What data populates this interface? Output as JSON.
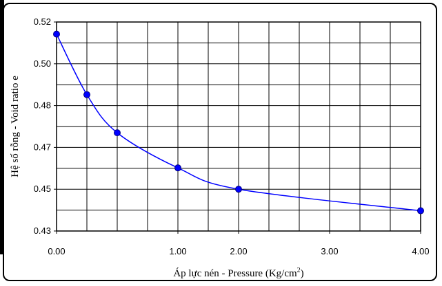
{
  "chart_data": {
    "type": "line",
    "title": "",
    "xlabel": "Áp lực nén - Pressure (Kg/cm",
    "xlabel_sup": "2",
    "xlabel_end": ")",
    "ylabel": "Hệ số rỗng - Void ratio e",
    "x_tick_labels": [
      "0.00",
      "1.00",
      "2.00",
      "3.00",
      "4.00"
    ],
    "y_tick_labels": [
      "0.43",
      "0.45",
      "0.47",
      "0.48",
      "0.50",
      "0.52"
    ],
    "y_ticks": [
      0.432,
      0.451,
      0.47,
      0.48,
      0.501,
      0.52
    ],
    "x_ticks_at": [
      0,
      1,
      2,
      3,
      4
    ],
    "x_piecewise_domain": [
      0,
      0.25,
      0.5,
      1,
      2,
      3,
      4
    ],
    "xlim": [
      0,
      4
    ],
    "ylim": [
      0.432,
      0.52
    ],
    "grid": true,
    "series": [
      {
        "color": "#0000ff",
        "x": [
          0,
          0.25,
          0.5,
          1,
          2,
          4
        ],
        "y": [
          0.5145,
          0.4855,
          0.4735,
          0.4607,
          0.451,
          0.4412
        ]
      }
    ]
  }
}
